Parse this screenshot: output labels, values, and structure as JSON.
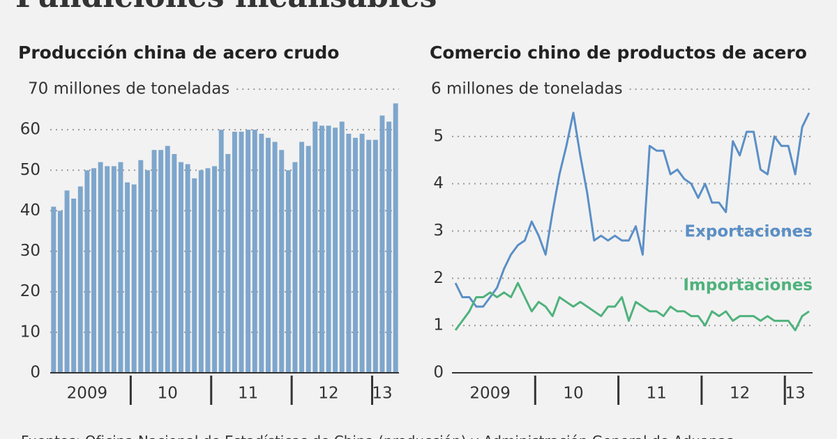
{
  "title": "Fundiciones incansables",
  "source": "Fuentes: Oficina Nacional de Estadísticas de China (producción) y Administración General de Aduanas",
  "chart_data": [
    {
      "type": "bar",
      "title": "Producción china de acero crudo",
      "categories": [
        null,
        null,
        null,
        null,
        null,
        "2009",
        null,
        null,
        null,
        null,
        null,
        null,
        null,
        null,
        null,
        null,
        null,
        "10",
        null,
        null,
        null,
        null,
        null,
        null,
        null,
        null,
        null,
        null,
        null,
        "11",
        null,
        null,
        null,
        null,
        null,
        null,
        null,
        null,
        null,
        null,
        null,
        "12",
        null,
        null,
        null,
        null,
        null,
        null,
        null,
        "13",
        null,
        null
      ],
      "values": [
        41,
        40,
        45,
        43,
        46,
        50,
        50.5,
        52,
        51,
        51,
        52,
        47,
        46.5,
        52.5,
        50,
        55,
        55,
        56,
        54,
        52,
        51.5,
        48,
        50,
        50.5,
        51,
        60,
        54,
        59.5,
        59.5,
        60,
        60,
        59,
        58,
        57,
        55,
        50,
        52,
        57,
        56,
        62,
        61,
        61,
        60.5,
        62,
        59,
        58,
        59,
        57.5,
        57.5,
        63.5,
        62,
        66.5
      ],
      "color": "#7ea6cc",
      "ylim": [
        0,
        70
      ],
      "yticks": [
        0,
        10,
        20,
        30,
        40,
        50,
        60,
        {
          "value": 70,
          "label": "70 millones de toneladas"
        }
      ],
      "grid": true
    },
    {
      "type": "line",
      "title": "Comercio chino de productos de acero",
      "categories": [
        null,
        null,
        null,
        null,
        null,
        "2009",
        null,
        null,
        null,
        null,
        null,
        null,
        null,
        null,
        null,
        null,
        null,
        "10",
        null,
        null,
        null,
        null,
        null,
        null,
        null,
        null,
        null,
        null,
        null,
        "11",
        null,
        null,
        null,
        null,
        null,
        null,
        null,
        null,
        null,
        null,
        null,
        "12",
        null,
        null,
        null,
        null,
        null,
        null,
        null,
        "13",
        null,
        null
      ],
      "series": [
        {
          "name": "Exportaciones",
          "color": "#5b8fc6",
          "values": [
            1.9,
            1.6,
            1.6,
            1.4,
            1.4,
            1.6,
            1.8,
            2.2,
            2.5,
            2.7,
            2.8,
            3.2,
            2.9,
            2.5,
            3.4,
            4.2,
            4.8,
            5.5,
            4.6,
            3.8,
            2.8,
            2.9,
            2.8,
            2.9,
            2.8,
            2.8,
            3.1,
            2.5,
            4.8,
            4.7,
            4.7,
            4.2,
            4.3,
            4.1,
            4.0,
            3.7,
            4.0,
            3.6,
            3.6,
            3.4,
            4.9,
            4.6,
            5.1,
            5.1,
            4.3,
            4.2,
            5.0,
            4.8,
            4.8,
            4.2,
            5.2,
            5.5
          ]
        },
        {
          "name": "Importaciones",
          "color": "#4fb27c",
          "values": [
            0.9,
            1.1,
            1.3,
            1.6,
            1.6,
            1.7,
            1.6,
            1.7,
            1.6,
            1.9,
            1.6,
            1.3,
            1.5,
            1.4,
            1.2,
            1.6,
            1.5,
            1.4,
            1.5,
            1.4,
            1.3,
            1.2,
            1.4,
            1.4,
            1.6,
            1.1,
            1.5,
            1.4,
            1.3,
            1.3,
            1.2,
            1.4,
            1.3,
            1.3,
            1.2,
            1.2,
            1.0,
            1.3,
            1.2,
            1.3,
            1.1,
            1.2,
            1.2,
            1.2,
            1.1,
            1.2,
            1.1,
            1.1,
            1.1,
            0.9,
            1.2,
            1.3
          ]
        }
      ],
      "ylim": [
        0,
        6
      ],
      "yticks": [
        0,
        1,
        2,
        3,
        4,
        5,
        {
          "value": 6,
          "label": "6 millones de toneladas"
        }
      ],
      "grid": true
    }
  ]
}
